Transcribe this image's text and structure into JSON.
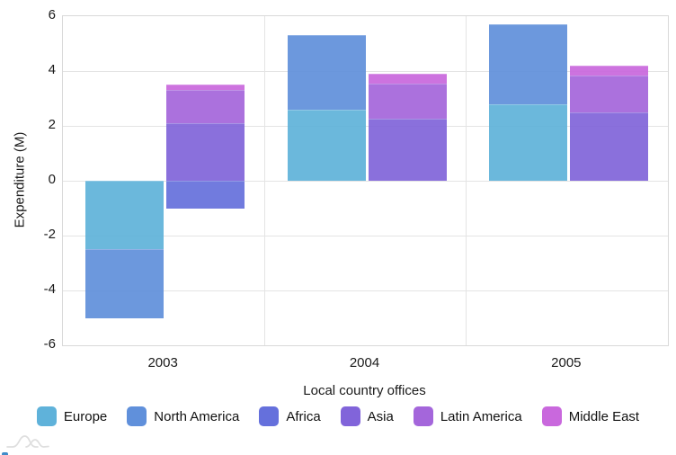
{
  "chart_data": {
    "type": "bar",
    "stacked": true,
    "title": "",
    "xlabel": "Local country offices",
    "ylabel": "Expenditure (M)",
    "categories": [
      "2003",
      "2004",
      "2005"
    ],
    "series": [
      {
        "name": "Europe",
        "stack": "A",
        "color": "#5fb2da",
        "values": [
          -2.5,
          2.6,
          2.8
        ]
      },
      {
        "name": "North America",
        "stack": "A",
        "color": "#6090db",
        "values": [
          -2.5,
          2.7,
          2.9
        ]
      },
      {
        "name": "Africa",
        "stack": "B",
        "color": "#6570dc",
        "values": [
          -1.0,
          0,
          0
        ]
      },
      {
        "name": "Asia",
        "stack": "B",
        "color": "#8164da",
        "values": [
          2.1,
          2.25,
          2.5
        ]
      },
      {
        "name": "Latin America",
        "stack": "B",
        "color": "#a466db",
        "values": [
          1.2,
          1.3,
          1.35
        ]
      },
      {
        "name": "Middle East",
        "stack": "B",
        "color": "#c968dd",
        "values": [
          0.2,
          0.35,
          0.35
        ]
      }
    ],
    "ylim": [
      -6,
      6
    ],
    "yticks": [
      6,
      4,
      2,
      0,
      -2,
      -4,
      -6
    ],
    "grid": true,
    "legend_position": "bottom"
  },
  "colors": {
    "grid": "#e4e4e4",
    "plot_border": "#d9d9d9",
    "text": "#1a1a1a",
    "watermark": "#dedede"
  },
  "icons": {
    "watermark": "overlapping-curves-logo"
  }
}
